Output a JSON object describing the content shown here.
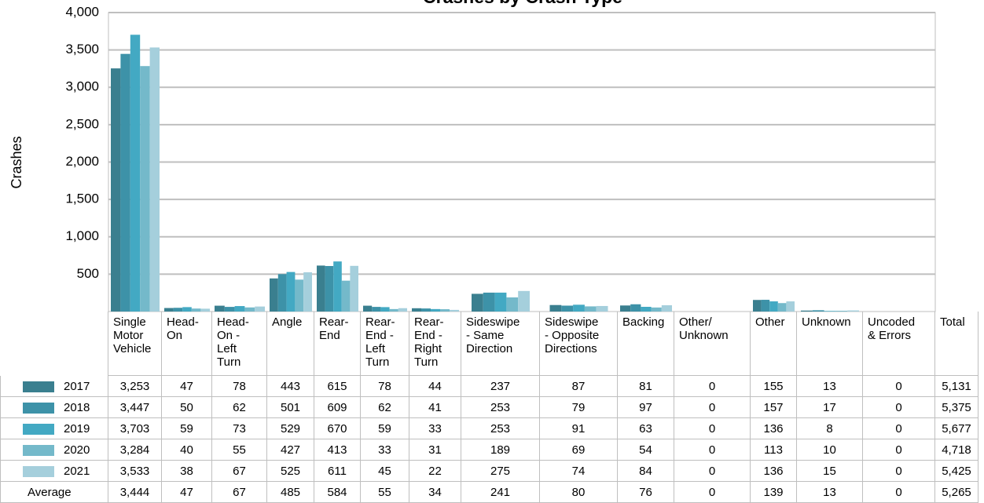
{
  "chart_data": {
    "type": "bar",
    "title": "Crashes by Crash Type",
    "y_label": "Crashes",
    "categories": [
      "Single\nMotor\nVehicle",
      "Head-\nOn",
      "Head-\nOn -\nLeft\nTurn",
      "Angle",
      "Rear-\nEnd",
      "Rear-\nEnd -\nLeft\nTurn",
      "Rear-\nEnd -\nRight\nTurn",
      "Sideswipe\n- Same\nDirection",
      "Sideswipe\n- Opposite\nDirections",
      "Backing",
      "Other/\nUnknown",
      "Other",
      "Unknown",
      "Uncoded\n& Errors"
    ],
    "total_label": "Total",
    "series": [
      {
        "name": "2017",
        "color": "#3a7f8f",
        "values": [
          3253,
          47,
          78,
          443,
          615,
          78,
          44,
          237,
          87,
          81,
          0,
          155,
          13,
          0
        ],
        "value_labels": [
          "3,253",
          "47",
          "78",
          "443",
          "615",
          "78",
          "44",
          "237",
          "87",
          "81",
          "0",
          "155",
          "13",
          "0"
        ],
        "total": "5,131"
      },
      {
        "name": "2018",
        "color": "#3d92a8",
        "values": [
          3447,
          50,
          62,
          501,
          609,
          62,
          41,
          253,
          79,
          97,
          0,
          157,
          17,
          0
        ],
        "value_labels": [
          "3,447",
          "50",
          "62",
          "501",
          "609",
          "62",
          "41",
          "253",
          "79",
          "97",
          "0",
          "157",
          "17",
          "0"
        ],
        "total": "5,375"
      },
      {
        "name": "2019",
        "color": "#43a9c3",
        "values": [
          3703,
          59,
          73,
          529,
          670,
          59,
          33,
          253,
          91,
          63,
          0,
          136,
          8,
          0
        ],
        "value_labels": [
          "3,703",
          "59",
          "73",
          "529",
          "670",
          "59",
          "33",
          "253",
          "91",
          "63",
          "0",
          "136",
          "8",
          "0"
        ],
        "total": "5,677"
      },
      {
        "name": "2020",
        "color": "#74b9ca",
        "values": [
          3284,
          40,
          55,
          427,
          413,
          33,
          31,
          189,
          69,
          54,
          0,
          113,
          10,
          0
        ],
        "value_labels": [
          "3,284",
          "40",
          "55",
          "427",
          "413",
          "33",
          "31",
          "189",
          "69",
          "54",
          "0",
          "113",
          "10",
          "0"
        ],
        "total": "4,718"
      },
      {
        "name": "2021",
        "color": "#a5cfdc",
        "values": [
          3533,
          38,
          67,
          525,
          611,
          45,
          22,
          275,
          74,
          84,
          0,
          136,
          15,
          0
        ],
        "value_labels": [
          "3,533",
          "38",
          "67",
          "525",
          "611",
          "45",
          "22",
          "275",
          "74",
          "84",
          "0",
          "136",
          "15",
          "0"
        ],
        "total": "5,425"
      }
    ],
    "average": {
      "name": "Average",
      "values": [
        "3,444",
        "47",
        "67",
        "485",
        "584",
        "55",
        "34",
        "241",
        "80",
        "76",
        "0",
        "139",
        "13",
        "0"
      ],
      "total": "5,265"
    },
    "ylim": [
      0,
      4000
    ],
    "yticks": [
      500,
      {
        "value": 1000,
        "label": "1,000"
      },
      {
        "value": 1500,
        "label": "1,500"
      },
      {
        "value": 2000,
        "label": "2,000"
      },
      {
        "value": 2500,
        "label": "2,500"
      },
      {
        "value": 3000,
        "label": "3,000"
      },
      {
        "value": 3500,
        "label": "3,500"
      },
      {
        "value": 4000,
        "label": "4,000"
      }
    ],
    "grid": true
  }
}
